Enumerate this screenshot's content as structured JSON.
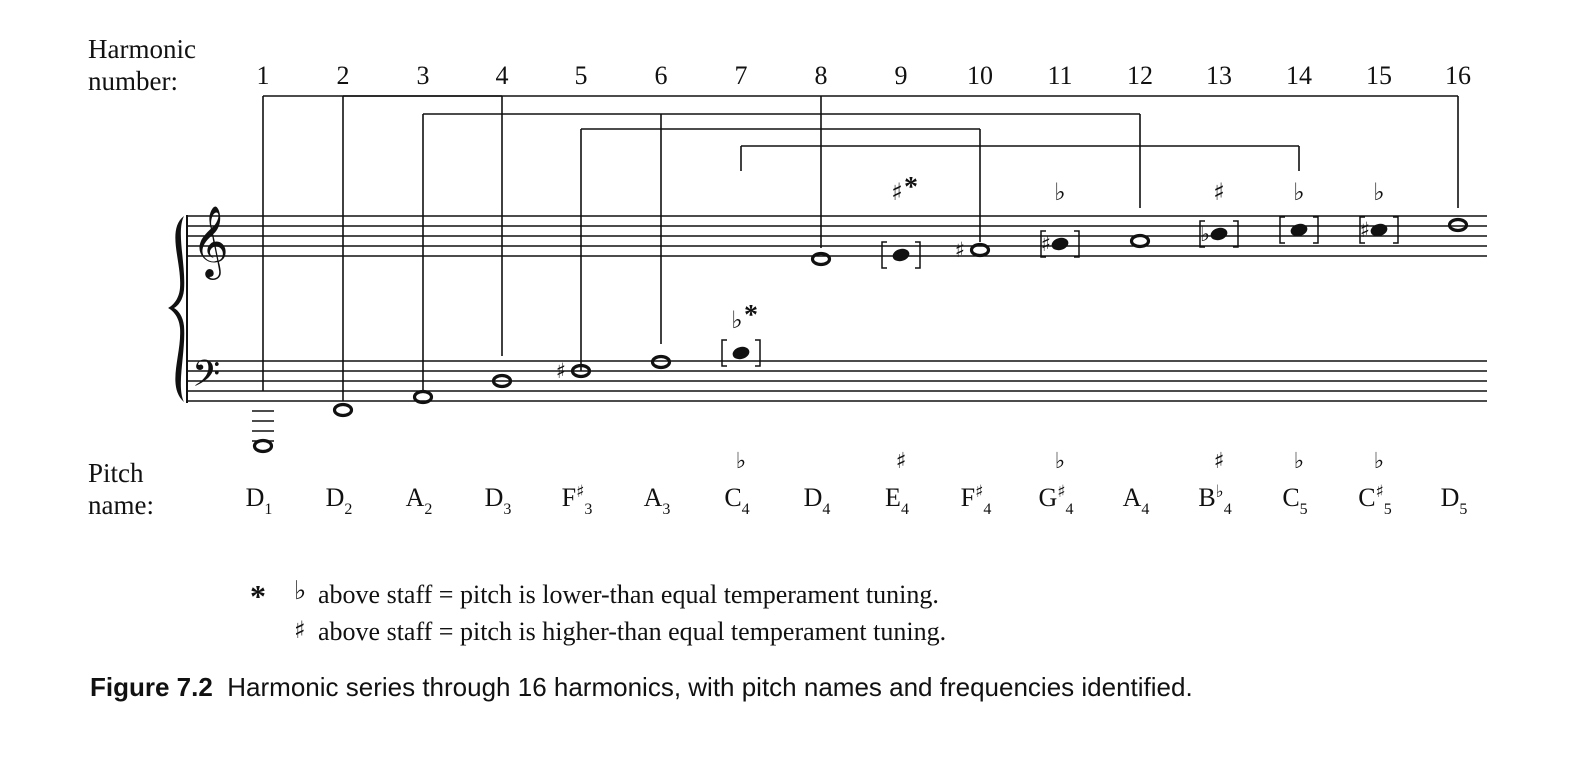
{
  "labels": {
    "harmonic_line1": "Harmonic",
    "harmonic_line2": "number:",
    "pitch_line1": "Pitch",
    "pitch_line2": "name:"
  },
  "harmonics": [
    {
      "n": "1",
      "letter": "D",
      "acc": "",
      "sub": "1",
      "above": "",
      "star": false
    },
    {
      "n": "2",
      "letter": "D",
      "acc": "",
      "sub": "2",
      "above": "",
      "star": false
    },
    {
      "n": "3",
      "letter": "A",
      "acc": "",
      "sub": "2",
      "above": "",
      "star": false
    },
    {
      "n": "4",
      "letter": "D",
      "acc": "",
      "sub": "3",
      "above": "",
      "star": false
    },
    {
      "n": "5",
      "letter": "F",
      "acc": "♯",
      "sub": "3",
      "above": "",
      "star": false
    },
    {
      "n": "6",
      "letter": "A",
      "acc": "",
      "sub": "3",
      "above": "",
      "star": false
    },
    {
      "n": "7",
      "letter": "C",
      "acc": "",
      "sub": "4",
      "above": "♭",
      "star": true
    },
    {
      "n": "8",
      "letter": "D",
      "acc": "",
      "sub": "4",
      "above": "",
      "star": false
    },
    {
      "n": "9",
      "letter": "E",
      "acc": "",
      "sub": "4",
      "above": "♯",
      "star": true
    },
    {
      "n": "10",
      "letter": "F",
      "acc": "♯",
      "sub": "4",
      "above": "",
      "star": false
    },
    {
      "n": "11",
      "letter": "G",
      "acc": "♯",
      "sub": "4",
      "above": "♭",
      "star": false
    },
    {
      "n": "12",
      "letter": "A",
      "acc": "",
      "sub": "4",
      "above": "",
      "star": false
    },
    {
      "n": "13",
      "letter": "B",
      "acc": "♭",
      "sub": "4",
      "above": "♯",
      "star": false
    },
    {
      "n": "14",
      "letter": "C",
      "acc": "",
      "sub": "5",
      "above": "♭",
      "star": false
    },
    {
      "n": "15",
      "letter": "C",
      "acc": "♯",
      "sub": "5",
      "above": "♭",
      "star": false
    },
    {
      "n": "16",
      "letter": "D",
      "acc": "",
      "sub": "5",
      "above": "",
      "star": false
    }
  ],
  "octave_brackets": [
    [
      1,
      16
    ],
    [
      2,
      4
    ],
    [
      3,
      12
    ],
    [
      5,
      10
    ],
    [
      7,
      14
    ]
  ],
  "legend": {
    "star": "*",
    "flat_symbol": "♭",
    "flat_text": "above staff = pitch is lower-than equal temperament tuning.",
    "sharp_symbol": "♯",
    "sharp_text": "above staff = pitch is higher-than equal temperament tuning."
  },
  "caption": {
    "figure_label": "Figure 7.2",
    "text": "Harmonic series through 16 harmonics, with pitch names and frequencies identified."
  }
}
